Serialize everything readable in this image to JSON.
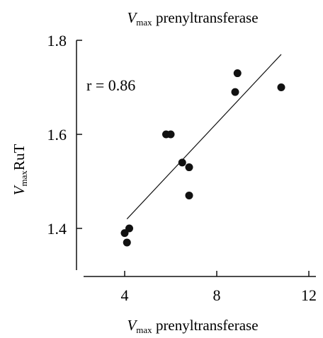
{
  "chart_data": {
    "type": "scatter",
    "title_parts": {
      "main": "V",
      "sub": "max",
      "rest": " prenyltransferase"
    },
    "xlabel_parts": {
      "main": "V",
      "sub": "max",
      "rest": " prenyltransferase"
    },
    "ylabel_parts": {
      "main": "V",
      "sub": "max",
      "rest": "RuT"
    },
    "annotation": "r = 0.86",
    "x_ticks": [
      4,
      8,
      12
    ],
    "x_tick_labels": [
      "4",
      "8",
      "12"
    ],
    "y_ticks": [
      1.4,
      1.6,
      1.8
    ],
    "y_tick_labels": [
      "1.4",
      "1.6",
      "1.8"
    ],
    "xlim": [
      2,
      12
    ],
    "ylim": [
      1.3,
      1.8
    ],
    "grid": false,
    "points": [
      {
        "x": 4.0,
        "y": 1.39
      },
      {
        "x": 4.1,
        "y": 1.37
      },
      {
        "x": 4.2,
        "y": 1.4
      },
      {
        "x": 5.8,
        "y": 1.6
      },
      {
        "x": 6.0,
        "y": 1.6
      },
      {
        "x": 6.5,
        "y": 1.54
      },
      {
        "x": 6.8,
        "y": 1.53
      },
      {
        "x": 6.8,
        "y": 1.47
      },
      {
        "x": 8.8,
        "y": 1.69
      },
      {
        "x": 8.9,
        "y": 1.73
      },
      {
        "x": 10.8,
        "y": 1.7
      }
    ],
    "regression_line": {
      "x": [
        4.1,
        10.8
      ],
      "y": [
        1.42,
        1.77
      ]
    },
    "colors": {
      "ink": "#111111",
      "background": "#ffffff"
    }
  }
}
